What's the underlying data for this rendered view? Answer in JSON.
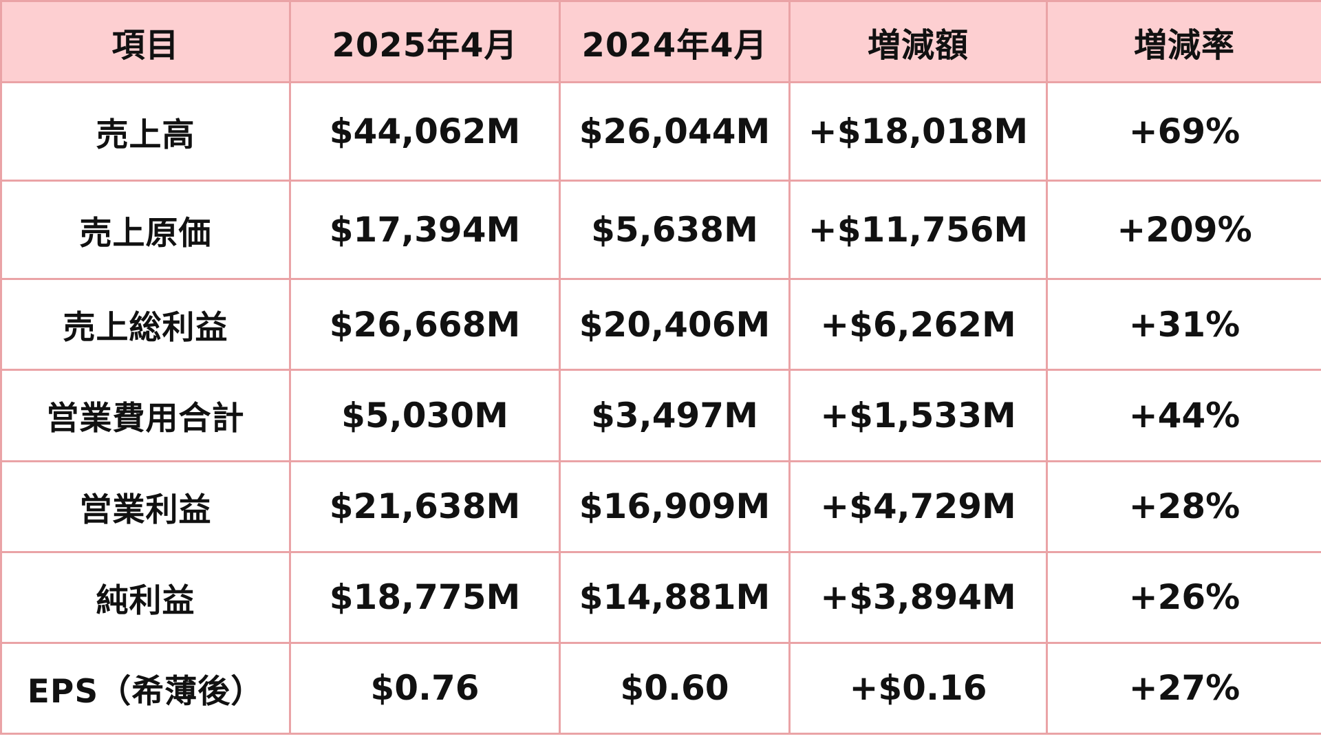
{
  "table": {
    "headers": [
      "項目",
      "2025年4月",
      "2024年4月",
      "増減額",
      "増減率"
    ],
    "rows": [
      [
        "売上高",
        "$44,062M",
        "$26,044M",
        "+$18,018M",
        "+69%"
      ],
      [
        "売上原価",
        "$17,394M",
        "$5,638M",
        "+$11,756M",
        "+209%"
      ],
      [
        "売上総利益",
        "$26,668M",
        "$20,406M",
        "+$6,262M",
        "+31%"
      ],
      [
        "営業費用合計",
        "$5,030M",
        "$3,497M",
        "+$1,533M",
        "+44%"
      ],
      [
        "営業利益",
        "$21,638M",
        "$16,909M",
        "+$4,729M",
        "+28%"
      ],
      [
        "純利益",
        "$18,775M",
        "$14,881M",
        "+$3,894M",
        "+26%"
      ],
      [
        "EPS（希薄後）",
        "$0.76",
        "$0.60",
        "+$0.16",
        "+27%"
      ]
    ]
  },
  "colors": {
    "header_bg": "#fdcfd1",
    "border": "#eaa3a6",
    "text": "#111111",
    "cell_bg": "#ffffff"
  }
}
